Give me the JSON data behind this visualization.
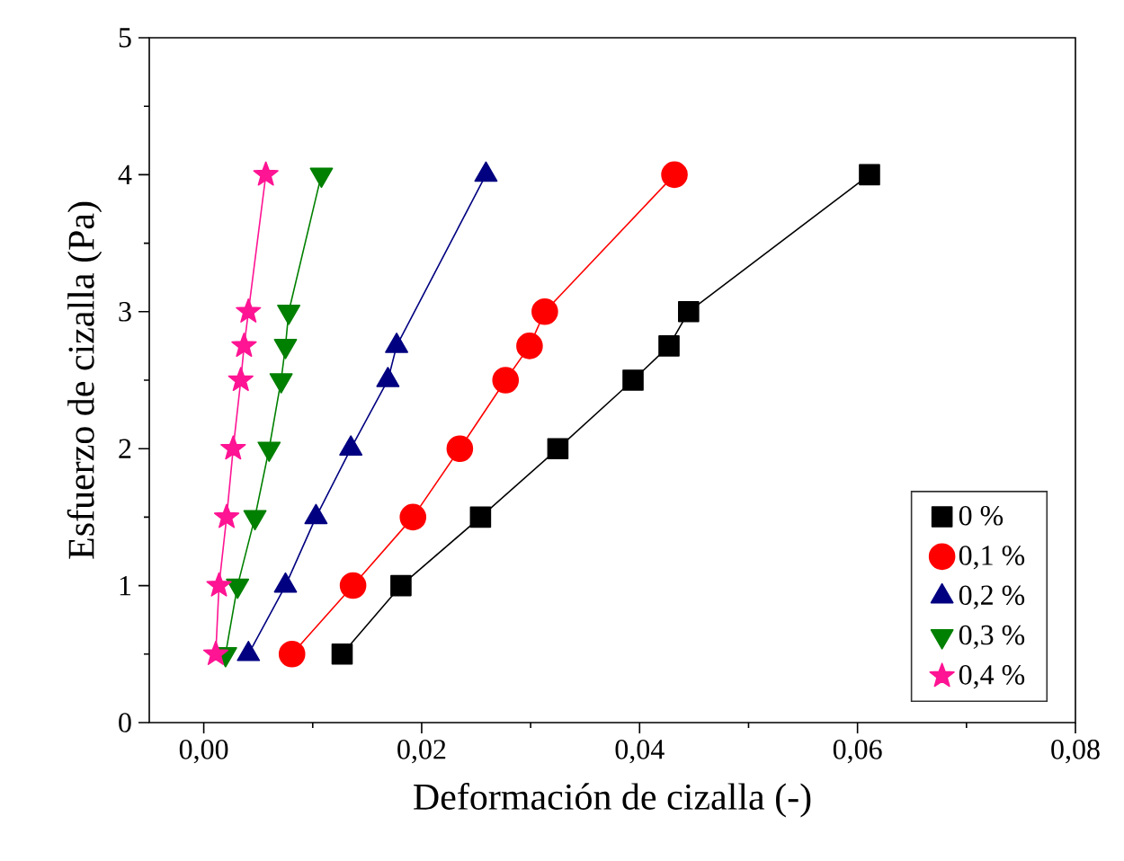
{
  "chart_data": {
    "type": "line",
    "xlabel": "Deformación de cizalla (-)",
    "ylabel": "Esfuerzo de cizalla (Pa)",
    "xlim": [
      -0.005,
      0.08
    ],
    "ylim": [
      0,
      5
    ],
    "xticks": [
      {
        "value": 0,
        "label": "0,00"
      },
      {
        "value": 0.02,
        "label": "0,02"
      },
      {
        "value": 0.04,
        "label": "0,04"
      },
      {
        "value": 0.06,
        "label": "0,06"
      },
      {
        "value": 0.08,
        "label": "0,08"
      }
    ],
    "yticks": [
      0,
      1,
      2,
      3,
      4,
      5
    ],
    "legend": "bottom right",
    "grid": false,
    "line_style": "solid",
    "series": [
      {
        "name": "0 %",
        "color": "#000000",
        "marker": "square",
        "x": [
          0.0127,
          0.0181,
          0.0254,
          0.0325,
          0.0394,
          0.0427,
          0.0445,
          0.0611
        ],
        "values": [
          0.5,
          1,
          1.5,
          2,
          2.5,
          2.75,
          3,
          4
        ]
      },
      {
        "name": "0,1 %",
        "color": "#ff0000",
        "marker": "circle",
        "x": [
          0.0081,
          0.0137,
          0.0192,
          0.0235,
          0.0277,
          0.0299,
          0.0313,
          0.0432
        ],
        "values": [
          0.5,
          1,
          1.5,
          2,
          2.5,
          2.75,
          3,
          4
        ]
      },
      {
        "name": "0,2 %",
        "color": "#000080",
        "marker": "triangle",
        "x": [
          0.0041,
          0.0075,
          0.0103,
          0.0135,
          0.0169,
          0.0177,
          0.0259
        ],
        "values": [
          0.5,
          1,
          1.5,
          2,
          2.5,
          2.75,
          4
        ]
      },
      {
        "name": "0,3 %",
        "color": "#008000",
        "marker": "triangle-down",
        "x": [
          0.002,
          0.0031,
          0.0047,
          0.006,
          0.0071,
          0.0075,
          0.0078,
          0.0108
        ],
        "values": [
          0.5,
          1,
          1.5,
          2,
          2.5,
          2.75,
          3,
          4
        ]
      },
      {
        "name": "0,4 %",
        "color": "#ff1493",
        "marker": "star",
        "x": [
          0.0011,
          0.0014,
          0.0021,
          0.0027,
          0.0034,
          0.0037,
          0.0041,
          0.0057
        ],
        "values": [
          0.5,
          1,
          1.5,
          2,
          2.5,
          2.75,
          3,
          4
        ]
      }
    ]
  }
}
